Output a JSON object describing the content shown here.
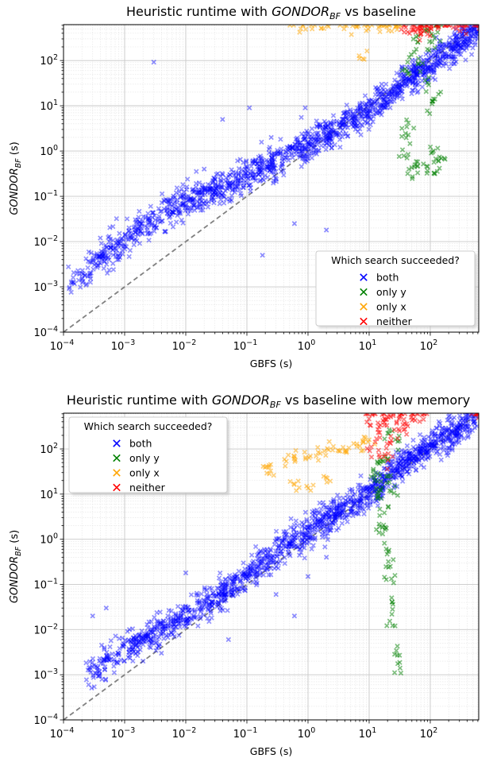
{
  "chart_data": [
    {
      "type": "scatter",
      "title": {
        "prefix": "Heuristic runtime with ",
        "italic": "GONDOR",
        "sub": "BF",
        "suffix": " vs baseline"
      },
      "xlabel": "GBFS (s)",
      "ylabel": {
        "italic": "GONDOR",
        "sub": "BF",
        "suffix": " (s)"
      },
      "xscale": "log",
      "yscale": "log",
      "xlim": [
        0.0001,
        620
      ],
      "ylim": [
        0.0001,
        620
      ],
      "x_ticks": [
        "-4",
        "-3",
        "-2",
        "-1",
        "0",
        "1",
        "2"
      ],
      "y_ticks": [
        "-4",
        "-3",
        "-2",
        "-1",
        "0",
        "1",
        "2"
      ],
      "grid": true,
      "reference_line": "y = x (dashed)",
      "legend": {
        "title": "Which search succeeded?",
        "placement": "lower-right",
        "entries": [
          {
            "label": "both",
            "color": "#0000ff"
          },
          {
            "label": "only y",
            "color": "#008000"
          },
          {
            "label": "only x",
            "color": "#ffa500"
          },
          {
            "label": "neither",
            "color": "#ff0000"
          }
        ]
      },
      "series": [
        {
          "name": "both",
          "color": "#0000ff",
          "trend": [
            [
              0.00012,
              0.0012
            ],
            [
              0.0003,
              0.003
            ],
            [
              0.001,
              0.01
            ],
            [
              0.003,
              0.035
            ],
            [
              0.01,
              0.08
            ],
            [
              0.03,
              0.14
            ],
            [
              0.1,
              0.3
            ],
            [
              0.3,
              0.6
            ],
            [
              1,
              1.4
            ],
            [
              3,
              3
            ],
            [
              10,
              8
            ],
            [
              30,
              25
            ],
            [
              100,
              80
            ],
            [
              300,
              250
            ],
            [
              600,
              580
            ]
          ],
          "points": [
            [
              0.003,
              92
            ],
            [
              0.11,
              9
            ],
            [
              0.04,
              5
            ],
            [
              0.9,
              9
            ],
            [
              5,
              6
            ],
            [
              16,
              30
            ],
            [
              20,
              11
            ],
            [
              0.18,
              0.005
            ],
            [
              0.6,
              0.025
            ],
            [
              2,
              0.018
            ],
            [
              0.0004,
              0.012
            ],
            [
              0.007,
              0.12
            ],
            [
              0.005,
              0.08
            ],
            [
              0.0008,
              0.004
            ],
            [
              0.02,
              0.4
            ],
            [
              0.25,
              2
            ]
          ]
        },
        {
          "name": "only y",
          "color": "#008000",
          "points": [
            [
              40,
              60
            ],
            [
              50,
              120
            ],
            [
              60,
              300
            ],
            [
              70,
              80
            ],
            [
              80,
              500
            ],
            [
              90,
              40
            ],
            [
              100,
              200
            ],
            [
              120,
              350
            ],
            [
              140,
              600
            ],
            [
              40,
              0.8
            ],
            [
              45,
              2
            ],
            [
              60,
              0.4
            ],
            [
              75,
              0.5
            ],
            [
              100,
              0.3
            ],
            [
              120,
              0.9
            ],
            [
              130,
              0.5
            ],
            [
              50,
              0.35
            ],
            [
              110,
              10
            ],
            [
              115,
              15
            ],
            [
              40,
              4
            ],
            [
              140,
              0.6
            ]
          ]
        },
        {
          "name": "only x",
          "color": "#ffa500",
          "points": [
            [
              0.6,
              600
            ],
            [
              1,
              600
            ],
            [
              2,
              600
            ],
            [
              4,
              600
            ],
            [
              6,
              600
            ],
            [
              10,
              600
            ],
            [
              15,
              600
            ],
            [
              20,
              600
            ],
            [
              25,
              600
            ],
            [
              30,
              600
            ],
            [
              8,
              130
            ]
          ]
        },
        {
          "name": "neither",
          "color": "#ff0000",
          "points": [
            [
              35,
              580
            ],
            [
              45,
              560
            ],
            [
              55,
              600
            ],
            [
              65,
              540
            ],
            [
              80,
              590
            ],
            [
              100,
              570
            ],
            [
              130,
              600
            ],
            [
              180,
              600
            ],
            [
              250,
              600
            ],
            [
              350,
              600
            ],
            [
              450,
              600
            ],
            [
              600,
              600
            ],
            [
              70,
              350
            ],
            [
              90,
              420
            ]
          ]
        }
      ]
    },
    {
      "type": "scatter",
      "title": {
        "prefix": "Heuristic runtime with ",
        "italic": "GONDOR",
        "sub": "BF",
        "suffix": " vs baseline with low memory"
      },
      "xlabel": "GBFS (s)",
      "ylabel": {
        "italic": "GONDOR",
        "sub": "BF",
        "suffix": " (s)"
      },
      "xscale": "log",
      "yscale": "log",
      "xlim": [
        0.0001,
        620
      ],
      "ylim": [
        0.0001,
        620
      ],
      "x_ticks": [
        "-4",
        "-3",
        "-2",
        "-1",
        "0",
        "1",
        "2"
      ],
      "y_ticks": [
        "-4",
        "-3",
        "-2",
        "-1",
        "0",
        "1",
        "2"
      ],
      "grid": true,
      "reference_line": "y = x (dashed)",
      "legend": {
        "title": "Which search succeeded?",
        "placement": "upper-left",
        "entries": [
          {
            "label": "both",
            "color": "#0000ff"
          },
          {
            "label": "only y",
            "color": "#008000"
          },
          {
            "label": "only x",
            "color": "#ffa500"
          },
          {
            "label": "neither",
            "color": "#ff0000"
          }
        ]
      },
      "series": [
        {
          "name": "both",
          "color": "#0000ff",
          "trend": [
            [
              0.0002,
              0.0008
            ],
            [
              0.0005,
              0.002
            ],
            [
              0.001,
              0.004
            ],
            [
              0.003,
              0.008
            ],
            [
              0.01,
              0.02
            ],
            [
              0.03,
              0.05
            ],
            [
              0.1,
              0.15
            ],
            [
              0.3,
              0.5
            ],
            [
              1,
              1.5
            ],
            [
              3,
              4
            ],
            [
              10,
              10
            ],
            [
              30,
              40
            ],
            [
              100,
              120
            ],
            [
              300,
              300
            ],
            [
              600,
              600
            ]
          ],
          "points": [
            [
              0.0003,
              0.02
            ],
            [
              0.0005,
              0.03
            ],
            [
              0.0012,
              0.01
            ],
            [
              0.002,
              0.002
            ],
            [
              0.004,
              0.003
            ],
            [
              0.05,
              0.006
            ],
            [
              0.3,
              0.06
            ],
            [
              0.6,
              0.02
            ],
            [
              1,
              0.15
            ],
            [
              2,
              0.4
            ],
            [
              0.01,
              0.18
            ]
          ]
        },
        {
          "name": "only y",
          "color": "#008000",
          "points": [
            [
              12,
              30
            ],
            [
              14,
              50
            ],
            [
              15,
              20
            ],
            [
              16,
              8
            ],
            [
              17,
              4
            ],
            [
              18,
              1.5
            ],
            [
              19,
              0.7
            ],
            [
              20,
              0.3
            ],
            [
              22,
              0.12
            ],
            [
              24,
              0.04
            ],
            [
              25,
              0.012
            ],
            [
              28,
              0.003
            ],
            [
              30,
              0.0015
            ],
            [
              15,
              12
            ],
            [
              18,
              60
            ],
            [
              20,
              25
            ],
            [
              25,
              10
            ],
            [
              22,
              200
            ],
            [
              28,
              150
            ],
            [
              17,
              2
            ]
          ]
        },
        {
          "name": "only x",
          "color": "#ffa500",
          "points": [
            [
              0.22,
              35
            ],
            [
              0.25,
              40
            ],
            [
              0.45,
              50
            ],
            [
              0.6,
              60
            ],
            [
              1,
              65
            ],
            [
              1.5,
              80
            ],
            [
              2,
              90
            ],
            [
              3,
              100
            ],
            [
              4,
              110
            ],
            [
              6,
              120
            ],
            [
              8,
              130
            ],
            [
              10,
              150
            ],
            [
              0.6,
              15
            ],
            [
              1,
              14
            ],
            [
              2,
              17
            ]
          ]
        },
        {
          "name": "neither",
          "color": "#ff0000",
          "points": [
            [
              10,
              600
            ],
            [
              12,
              400
            ],
            [
              14,
              200
            ],
            [
              15,
              600
            ],
            [
              18,
              300
            ],
            [
              20,
              500
            ],
            [
              22,
              150
            ],
            [
              25,
              600
            ],
            [
              28,
              250
            ],
            [
              30,
              400
            ],
            [
              35,
              600
            ],
            [
              40,
              300
            ],
            [
              50,
              500
            ],
            [
              60,
              600
            ],
            [
              80,
              600
            ],
            [
              12,
              100
            ],
            [
              16,
              80
            ],
            [
              20,
              60
            ],
            [
              600,
              600
            ],
            [
              550,
              600
            ]
          ]
        }
      ]
    }
  ]
}
